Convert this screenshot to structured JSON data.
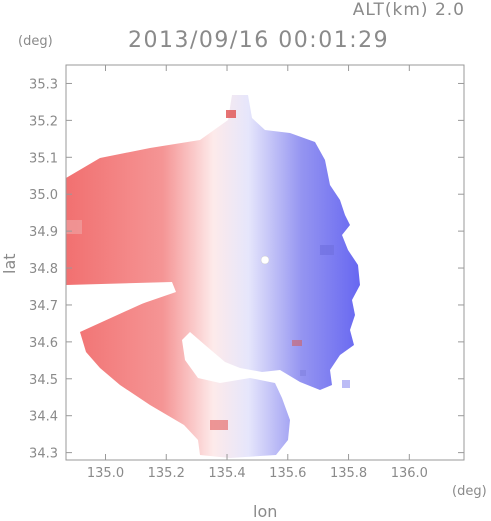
{
  "header": {
    "altitude_label": "ALT(km) 2.0",
    "timestamp": "2013/09/16 00:01:29"
  },
  "chart_data": {
    "type": "heatmap",
    "title": "2013/09/16 00:01:29",
    "xlabel": "lon",
    "ylabel": "lat",
    "x_unit": "(deg)",
    "y_unit": "(deg)",
    "xlim": [
      134.87,
      136.18
    ],
    "ylim": [
      34.28,
      35.35
    ],
    "x_ticks": [
      135.0,
      135.2,
      135.4,
      135.6,
      135.8,
      136.0
    ],
    "x_tick_labels": [
      "135.0",
      "135.2",
      "135.4",
      "135.6",
      "135.8",
      "136.0"
    ],
    "y_ticks": [
      34.3,
      34.4,
      34.5,
      34.6,
      34.7,
      34.8,
      34.9,
      35.0,
      35.1,
      35.2,
      35.3
    ],
    "y_tick_labels": [
      "34.3",
      "34.4",
      "34.5",
      "34.6",
      "34.7",
      "34.8",
      "34.9",
      "35.0",
      "35.1",
      "35.2",
      "35.3"
    ],
    "radar_center": [
      135.52,
      34.81
    ],
    "colormap": {
      "negative": "#5a5af0",
      "zero": "#ffffff",
      "positive": "#f06464"
    },
    "grid": false
  }
}
